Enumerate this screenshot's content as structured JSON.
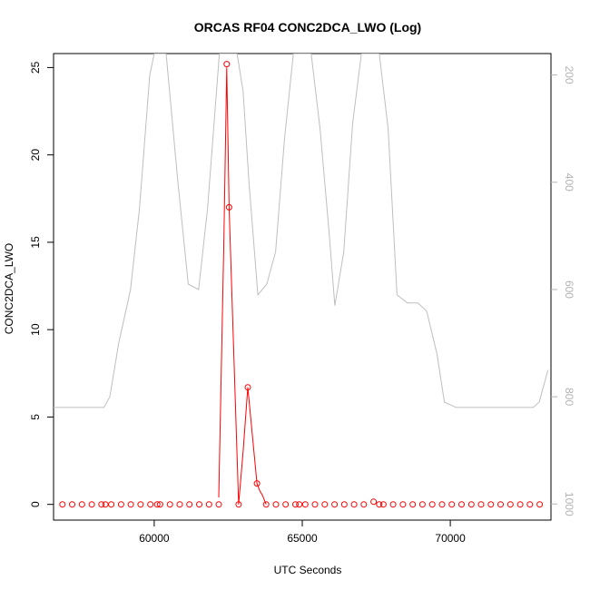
{
  "chart_data": {
    "type": "line",
    "title": "ORCAS RF04 CONC2DCA_LWO (Log)",
    "xlabel": "UTC Seconds",
    "ylabel": "CONC2DCA_LWO",
    "xlim": [
      56600,
      73400
    ],
    "ylim": [
      -0.9,
      25.8
    ],
    "x_ticks": [
      60000,
      65000,
      70000
    ],
    "y_ticks": [
      0,
      5,
      10,
      15,
      20,
      25
    ],
    "right_axis": {
      "label": "",
      "ylim": [
        1030,
        160
      ],
      "ticks": [
        200,
        400,
        600,
        800,
        1000
      ],
      "color": "#b3b3b3"
    },
    "series": [
      {
        "axis": "left",
        "color": "#ff0000",
        "markers": "open-circle",
        "x": [
          56900,
          57230,
          57560,
          57890,
          58220,
          58550,
          58880,
          59210,
          59540,
          59870,
          60200,
          60530,
          60860,
          61190,
          61520,
          61850,
          62180,
          62260,
          62350,
          62450,
          62850,
          63160,
          63470,
          63780,
          64110,
          64440,
          64770,
          65100,
          65430,
          65760,
          66090,
          66420,
          66750,
          67080,
          67410,
          67740,
          68070,
          68400,
          68730,
          69060,
          69390,
          69720,
          70050,
          70380,
          70710,
          71040,
          71370,
          71700,
          72030,
          72360,
          72690,
          73020,
          58350,
          60100,
          64900,
          67600
        ],
        "y": [
          0,
          0,
          0,
          0,
          0,
          0,
          0,
          0,
          0,
          0,
          0,
          0,
          0,
          0,
          0,
          0,
          0,
          0,
          0,
          0,
          0,
          0,
          0,
          0,
          0,
          0,
          0,
          0,
          0,
          0,
          0,
          0,
          0,
          0,
          0,
          0,
          0,
          0,
          0,
          0,
          0,
          0,
          0,
          0,
          0,
          0,
          0,
          0,
          0,
          0,
          0,
          0,
          0,
          0,
          0,
          0
        ],
        "line_x": [
          62180,
          62350,
          62450,
          62530,
          62850,
          63000,
          63160,
          63470,
          63560,
          63660,
          63780
        ],
        "line_y": [
          0.4,
          15,
          25,
          17,
          0,
          3,
          6.7,
          1.2,
          0.8,
          0.5,
          0
        ],
        "circle_x": [
          56900,
          57230,
          57560,
          57890,
          58220,
          58350,
          58550,
          58880,
          59210,
          59540,
          59870,
          60100,
          60200,
          60530,
          60860,
          61190,
          61520,
          61850,
          62180,
          62450,
          62530,
          62850,
          63160,
          63470,
          63780,
          64110,
          64440,
          64770,
          64900,
          65100,
          65430,
          65760,
          66090,
          66420,
          66750,
          67080,
          67410,
          67600,
          67740,
          68070,
          68400,
          68730,
          69060,
          69390,
          69720,
          70050,
          70380,
          70710,
          71040,
          71370,
          71700,
          72030,
          72360,
          72690,
          73020
        ],
        "circle_y": [
          0,
          0,
          0,
          0,
          0,
          0,
          0,
          0,
          0,
          0,
          0,
          0,
          0,
          0,
          0,
          0,
          0,
          0,
          0,
          25.2,
          17,
          0,
          6.7,
          1.2,
          0,
          0,
          0,
          0,
          0,
          0,
          0,
          0,
          0,
          0,
          0,
          0,
          0.15,
          0,
          0,
          0,
          0,
          0,
          0,
          0,
          0,
          0,
          0,
          0,
          0,
          0,
          0,
          0,
          0,
          0,
          0
        ]
      },
      {
        "axis": "right",
        "color": "#bebebe",
        "x": [
          56600,
          58300,
          58500,
          58800,
          59200,
          59500,
          59850,
          60000,
          60400,
          60800,
          61150,
          61500,
          61800,
          62200,
          62500,
          62800,
          63000,
          63200,
          63500,
          63800,
          64100,
          64400,
          64700,
          64950,
          65300,
          65600,
          65900,
          66100,
          66400,
          66700,
          67000,
          67300,
          67600,
          67900,
          68200,
          68550,
          68900,
          69200,
          69550,
          69800,
          70200,
          70500,
          72800,
          73000,
          73300
        ],
        "y": [
          820,
          820,
          800,
          700,
          600,
          450,
          200,
          160,
          160,
          400,
          590,
          600,
          450,
          160,
          160,
          160,
          230,
          400,
          610,
          590,
          530,
          320,
          160,
          160,
          160,
          300,
          490,
          630,
          530,
          290,
          160,
          160,
          160,
          300,
          610,
          625,
          625,
          640,
          720,
          810,
          820,
          820,
          820,
          810,
          750
        ]
      }
    ]
  }
}
